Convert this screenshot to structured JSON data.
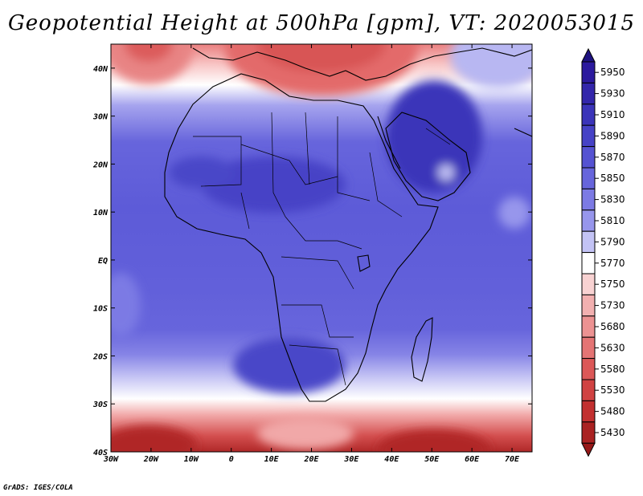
{
  "title": "Geopotential Height at 500hPa [gpm], VT: 2020053015",
  "credit": "GrADS: IGES/COLA",
  "map": {
    "lon_range": [
      -30,
      75
    ],
    "lat_range": [
      -40,
      45
    ],
    "lon_ticks": [
      {
        "value": -30,
        "label": "30W"
      },
      {
        "value": -20,
        "label": "20W"
      },
      {
        "value": -10,
        "label": "10W"
      },
      {
        "value": 0,
        "label": "0"
      },
      {
        "value": 10,
        "label": "10E"
      },
      {
        "value": 20,
        "label": "20E"
      },
      {
        "value": 30,
        "label": "30E"
      },
      {
        "value": 40,
        "label": "40E"
      },
      {
        "value": 50,
        "label": "50E"
      },
      {
        "value": 60,
        "label": "60E"
      },
      {
        "value": 70,
        "label": "70E"
      }
    ],
    "lat_ticks": [
      {
        "value": 40,
        "label": "40N"
      },
      {
        "value": 30,
        "label": "30N"
      },
      {
        "value": 20,
        "label": "20N"
      },
      {
        "value": 10,
        "label": "10N"
      },
      {
        "value": 0,
        "label": "EQ"
      },
      {
        "value": -10,
        "label": "10S"
      },
      {
        "value": -20,
        "label": "20S"
      },
      {
        "value": -30,
        "label": "30S"
      },
      {
        "value": -40,
        "label": "40S"
      }
    ]
  },
  "colorbar": {
    "levels": [
      {
        "label": "5950",
        "color": "#2c1a9e"
      },
      {
        "label": "5930",
        "color": "#3326ab"
      },
      {
        "label": "5910",
        "color": "#3b34b9"
      },
      {
        "label": "5890",
        "color": "#4642c6"
      },
      {
        "label": "5870",
        "color": "#5552d2"
      },
      {
        "label": "5850",
        "color": "#6765dc"
      },
      {
        "label": "5830",
        "color": "#7c7ae4"
      },
      {
        "label": "5810",
        "color": "#9796ec"
      },
      {
        "label": "5790",
        "color": "#c3c3f5"
      },
      {
        "label": "5770",
        "color": "#ffffff"
      },
      {
        "label": "5750",
        "color": "#f8d2d2"
      },
      {
        "label": "5730",
        "color": "#f2b0b0"
      },
      {
        "label": "5680",
        "color": "#ec9292"
      },
      {
        "label": "5630",
        "color": "#e47474"
      },
      {
        "label": "5580",
        "color": "#dc5858"
      },
      {
        "label": "5530",
        "color": "#d04242"
      },
      {
        "label": "5480",
        "color": "#c23030"
      },
      {
        "label": "5430",
        "color": "#aa2222"
      }
    ],
    "top_arrow_color": "#1e1280",
    "bottom_arrow_color": "#961818"
  }
}
